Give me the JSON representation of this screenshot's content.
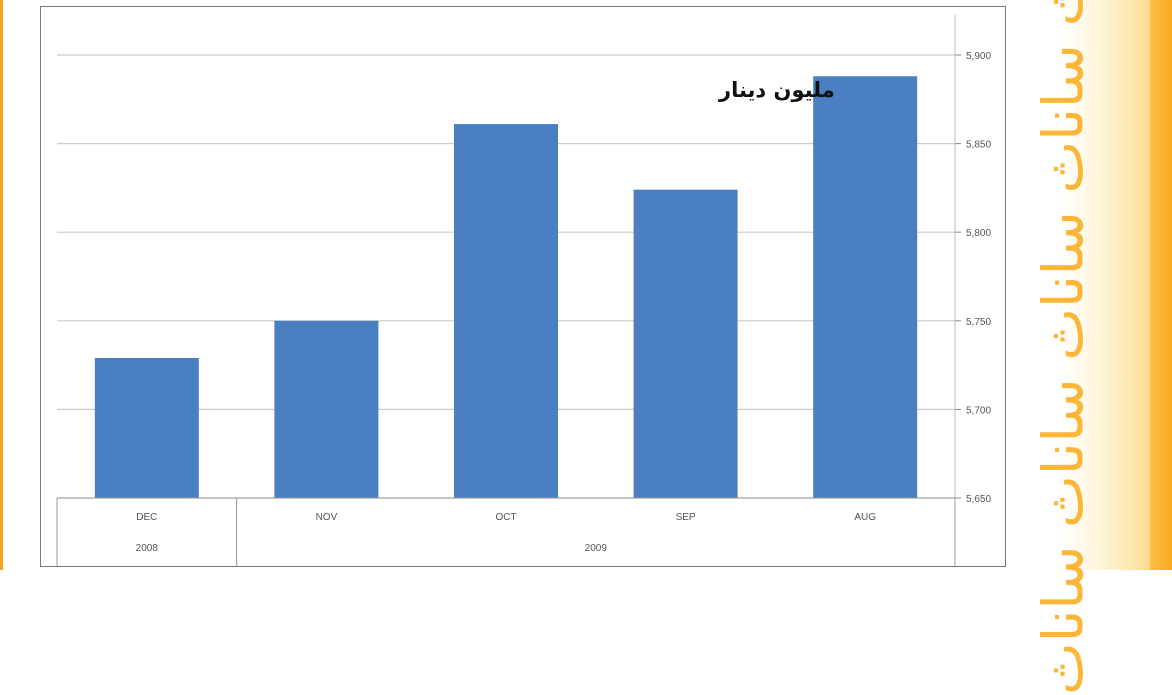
{
  "chart_data": {
    "type": "bar",
    "title": "مليون دينار",
    "categories": [
      "DEC",
      "NOV",
      "OCT",
      "SEP",
      "AUG"
    ],
    "values": [
      5729,
      5750,
      5861,
      5824,
      5888
    ],
    "groups": [
      {
        "label": "2008",
        "categories": [
          "DEC"
        ]
      },
      {
        "label": "2009",
        "categories": [
          "NOV",
          "OCT",
          "SEP",
          "AUG"
        ]
      }
    ],
    "ylim": [
      5650,
      5900
    ],
    "yticks": [
      5650,
      5700,
      5750,
      5800,
      5850,
      5900
    ],
    "ytick_labels": [
      "5,650",
      "5,700",
      "5,750",
      "5,800",
      "5,850",
      "5,900"
    ],
    "y_axis_side": "right",
    "grid": true,
    "bar_color": "#4a7fc1",
    "grid_color": "#cccccc"
  },
  "decoration": {
    "side_text": "ساناث ساناث ساناث ساناث ساناث",
    "accent_color": "#f3a521"
  }
}
